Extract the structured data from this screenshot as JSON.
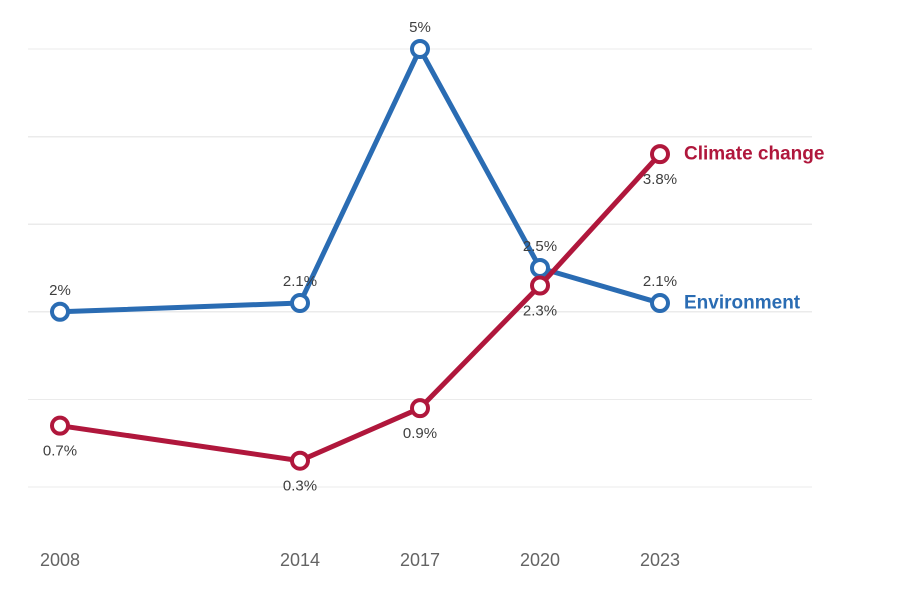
{
  "page": {
    "background_color": "#ffffff"
  },
  "chart_data": {
    "type": "line",
    "title": "",
    "x": [
      2008,
      2014,
      2017,
      2020,
      2023
    ],
    "x_tick_labels": [
      "2008",
      "2014",
      "2017",
      "2020",
      "2023"
    ],
    "ylim": [
      0,
      5
    ],
    "y_grid_interval": 1,
    "grid": "horizontal",
    "y_axis_labels_shown": false,
    "legend_position": "line-end-labels",
    "series": [
      {
        "name": "Environment",
        "color": "#2a6cb3",
        "values": [
          2,
          2.1,
          5,
          2.5,
          2.1
        ],
        "point_labels": [
          "2%",
          "2.1%",
          "5%",
          "2.5%",
          "2.1%"
        ],
        "label_side": "above"
      },
      {
        "name": "Climate change",
        "color": "#b0173c",
        "values": [
          0.7,
          0.3,
          0.9,
          2.3,
          3.8
        ],
        "point_labels": [
          "0.7%",
          "0.3%",
          "0.9%",
          "2.3%",
          "3.8%"
        ],
        "label_side": "below"
      }
    ],
    "styles": {
      "grid_color": "#ebebeb",
      "point_label_color": "#3f3f3f",
      "axis_label_color": "#646464",
      "marker_fill": "#ffffff"
    }
  }
}
